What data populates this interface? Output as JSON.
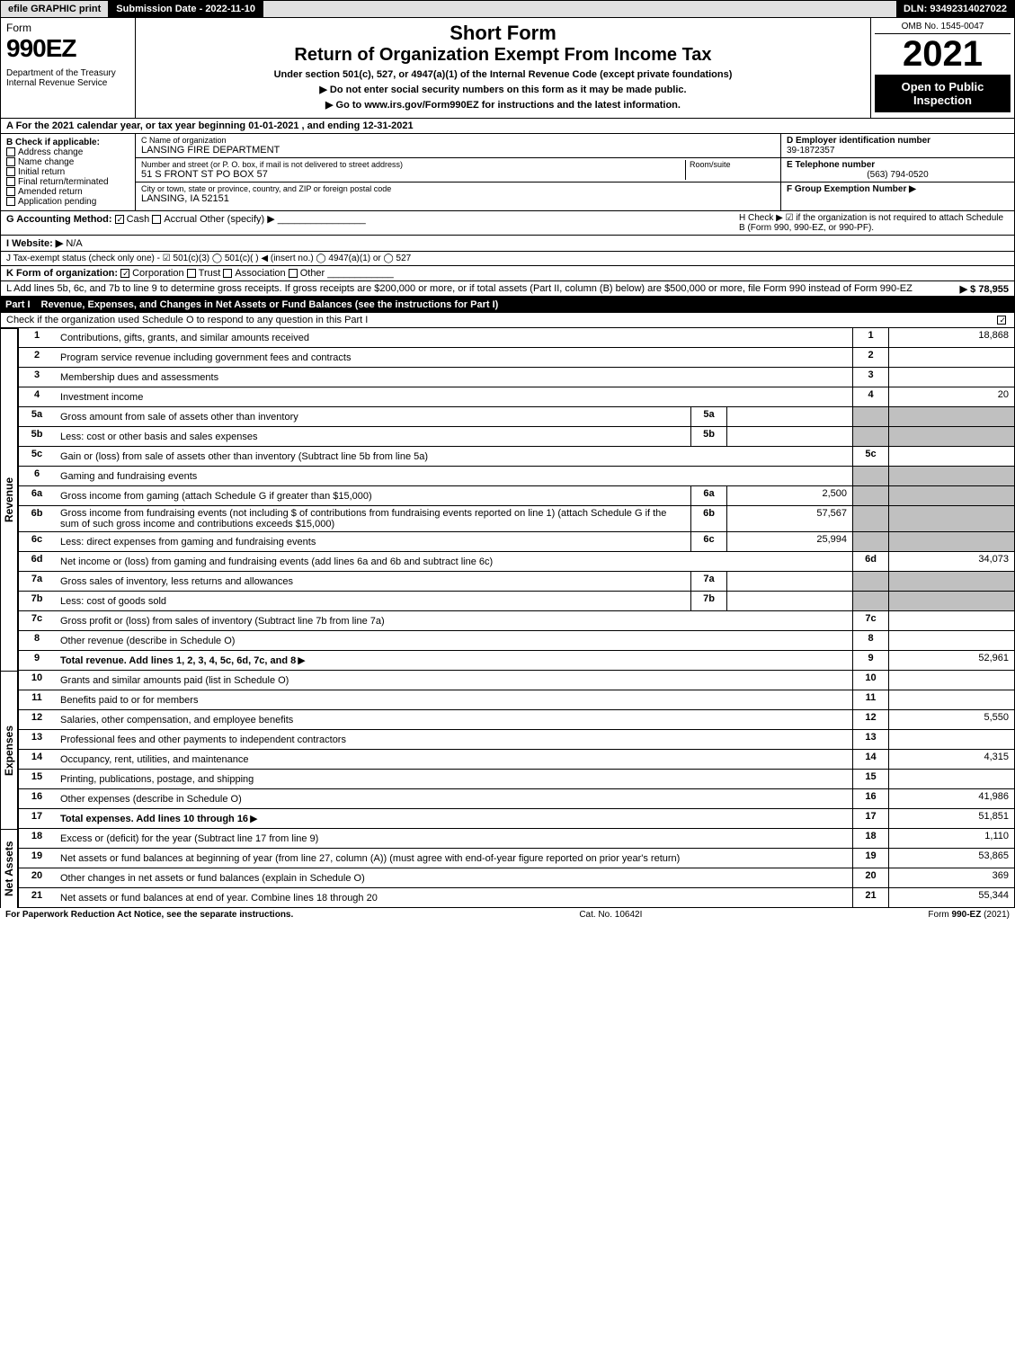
{
  "topbar": {
    "efile": "efile GRAPHIC print",
    "submission": "Submission Date - 2022-11-10",
    "dln": "DLN: 93492314027022"
  },
  "header": {
    "form_label": "Form",
    "form_num": "990EZ",
    "dept": "Department of the Treasury",
    "irs": "Internal Revenue Service",
    "short_form": "Short Form",
    "title": "Return of Organization Exempt From Income Tax",
    "under": "Under section 501(c), 527, or 4947(a)(1) of the Internal Revenue Code (except private foundations)",
    "no_ssn": "▶ Do not enter social security numbers on this form as it may be made public.",
    "goto": "▶ Go to www.irs.gov/Form990EZ for instructions and the latest information.",
    "omb": "OMB No. 1545-0047",
    "year": "2021",
    "open": "Open to Public Inspection"
  },
  "a": {
    "text": "A  For the 2021 calendar year, or tax year beginning 01-01-2021 , and ending 12-31-2021"
  },
  "b": {
    "label": "B  Check if applicable:",
    "opts": [
      "Address change",
      "Name change",
      "Initial return",
      "Final return/terminated",
      "Amended return",
      "Application pending"
    ]
  },
  "c": {
    "name_label": "C Name of organization",
    "name": "LANSING FIRE DEPARTMENT",
    "addr_label": "Number and street (or P. O. box, if mail is not delivered to street address)",
    "room_label": "Room/suite",
    "addr": "51 S FRONT ST PO BOX 57",
    "city_label": "City or town, state or province, country, and ZIP or foreign postal code",
    "city": "LANSING, IA  52151"
  },
  "d": {
    "label": "D Employer identification number",
    "ein": "39-1872357"
  },
  "e": {
    "label": "E Telephone number",
    "phone": "(563) 794-0520"
  },
  "f": {
    "label": "F Group Exemption Number  ▶"
  },
  "g": {
    "label": "G Accounting Method:",
    "cash": "Cash",
    "accrual": "Accrual",
    "other": "Other (specify) ▶"
  },
  "h": {
    "text": "H  Check ▶ ☑ if the organization is not required to attach Schedule B (Form 990, 990-EZ, or 990-PF)."
  },
  "i": {
    "label": "I Website: ▶",
    "val": "N/A"
  },
  "j": {
    "text": "J Tax-exempt status (check only one) - ☑ 501(c)(3)  ◯ 501(c)(  ) ◀ (insert no.)  ◯ 4947(a)(1) or  ◯ 527"
  },
  "k": {
    "label": "K Form of organization:",
    "corp": "Corporation",
    "trust": "Trust",
    "assoc": "Association",
    "other": "Other"
  },
  "l": {
    "text": "L Add lines 5b, 6c, and 7b to line 9 to determine gross receipts. If gross receipts are $200,000 or more, or if total assets (Part II, column (B) below) are $500,000 or more, file Form 990 instead of Form 990-EZ",
    "amount": "▶ $ 78,955"
  },
  "part1": {
    "title": "Revenue, Expenses, and Changes in Net Assets or Fund Balances (see the instructions for Part I)",
    "sub": "Check if the organization used Schedule O to respond to any question in this Part I",
    "revenue_label": "Revenue",
    "expenses_label": "Expenses",
    "netassets_label": "Net Assets",
    "lines": {
      "1": {
        "desc": "Contributions, gifts, grants, and similar amounts received",
        "ref": "1",
        "val": "18,868"
      },
      "2": {
        "desc": "Program service revenue including government fees and contracts",
        "ref": "2",
        "val": ""
      },
      "3": {
        "desc": "Membership dues and assessments",
        "ref": "3",
        "val": ""
      },
      "4": {
        "desc": "Investment income",
        "ref": "4",
        "val": "20"
      },
      "5a": {
        "desc": "Gross amount from sale of assets other than inventory",
        "sub": "5a",
        "subval": ""
      },
      "5b": {
        "desc": "Less: cost or other basis and sales expenses",
        "sub": "5b",
        "subval": ""
      },
      "5c": {
        "desc": "Gain or (loss) from sale of assets other than inventory (Subtract line 5b from line 5a)",
        "ref": "5c",
        "val": ""
      },
      "6": {
        "desc": "Gaming and fundraising events"
      },
      "6a": {
        "desc": "Gross income from gaming (attach Schedule G if greater than $15,000)",
        "sub": "6a",
        "subval": "2,500"
      },
      "6b": {
        "desc1": "Gross income from fundraising events (not including $",
        "desc2": "of contributions from fundraising events reported on line 1) (attach Schedule G if the sum of such gross income and contributions exceeds $15,000)",
        "sub": "6b",
        "subval": "57,567"
      },
      "6c": {
        "desc": "Less: direct expenses from gaming and fundraising events",
        "sub": "6c",
        "subval": "25,994"
      },
      "6d": {
        "desc": "Net income or (loss) from gaming and fundraising events (add lines 6a and 6b and subtract line 6c)",
        "ref": "6d",
        "val": "34,073"
      },
      "7a": {
        "desc": "Gross sales of inventory, less returns and allowances",
        "sub": "7a",
        "subval": ""
      },
      "7b": {
        "desc": "Less: cost of goods sold",
        "sub": "7b",
        "subval": ""
      },
      "7c": {
        "desc": "Gross profit or (loss) from sales of inventory (Subtract line 7b from line 7a)",
        "ref": "7c",
        "val": ""
      },
      "8": {
        "desc": "Other revenue (describe in Schedule O)",
        "ref": "8",
        "val": ""
      },
      "9": {
        "desc": "Total revenue. Add lines 1, 2, 3, 4, 5c, 6d, 7c, and 8",
        "ref": "9",
        "val": "52,961",
        "bold": true
      },
      "10": {
        "desc": "Grants and similar amounts paid (list in Schedule O)",
        "ref": "10",
        "val": ""
      },
      "11": {
        "desc": "Benefits paid to or for members",
        "ref": "11",
        "val": ""
      },
      "12": {
        "desc": "Salaries, other compensation, and employee benefits",
        "ref": "12",
        "val": "5,550"
      },
      "13": {
        "desc": "Professional fees and other payments to independent contractors",
        "ref": "13",
        "val": ""
      },
      "14": {
        "desc": "Occupancy, rent, utilities, and maintenance",
        "ref": "14",
        "val": "4,315"
      },
      "15": {
        "desc": "Printing, publications, postage, and shipping",
        "ref": "15",
        "val": ""
      },
      "16": {
        "desc": "Other expenses (describe in Schedule O)",
        "ref": "16",
        "val": "41,986"
      },
      "17": {
        "desc": "Total expenses. Add lines 10 through 16",
        "ref": "17",
        "val": "51,851",
        "bold": true
      },
      "18": {
        "desc": "Excess or (deficit) for the year (Subtract line 17 from line 9)",
        "ref": "18",
        "val": "1,110"
      },
      "19": {
        "desc": "Net assets or fund balances at beginning of year (from line 27, column (A)) (must agree with end-of-year figure reported on prior year's return)",
        "ref": "19",
        "val": "53,865"
      },
      "20": {
        "desc": "Other changes in net assets or fund balances (explain in Schedule O)",
        "ref": "20",
        "val": "369"
      },
      "21": {
        "desc": "Net assets or fund balances at end of year. Combine lines 18 through 20",
        "ref": "21",
        "val": "55,344"
      }
    }
  },
  "footer": {
    "left": "For Paperwork Reduction Act Notice, see the separate instructions.",
    "mid": "Cat. No. 10642I",
    "right": "Form 990-EZ (2021)"
  }
}
